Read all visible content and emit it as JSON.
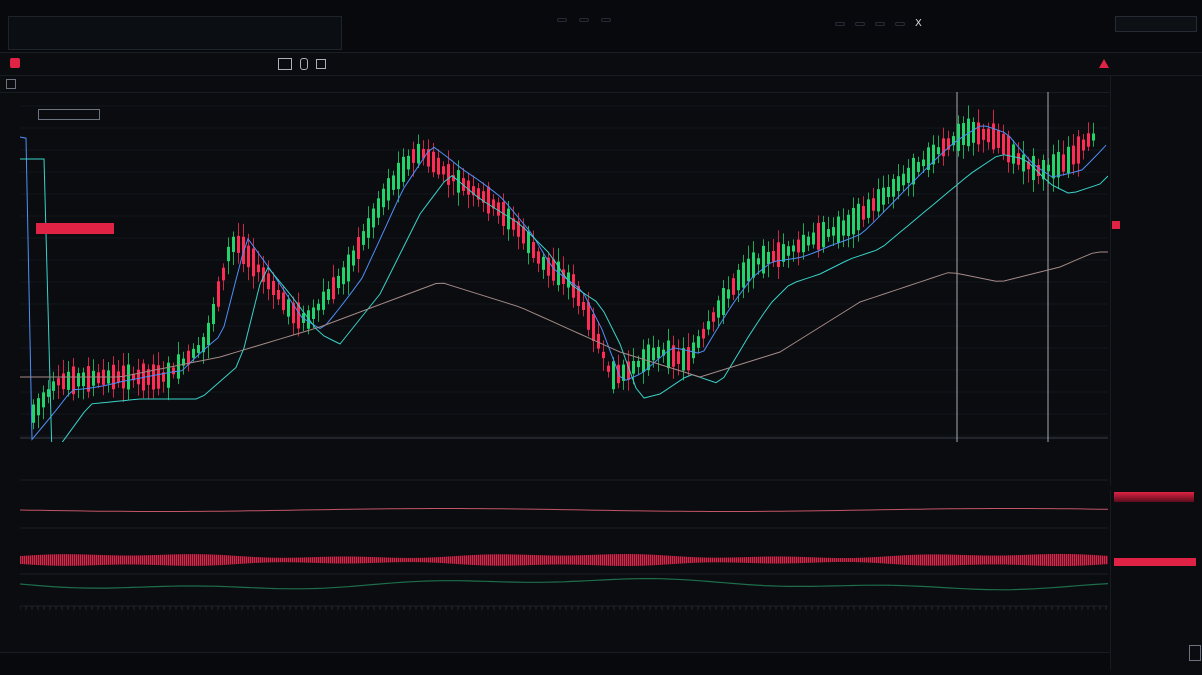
{
  "topbar": {
    "watch_items": [
      {
        "label": "",
        "change": "",
        "color": "red"
      },
      {
        "label": "",
        "change": "",
        "color": "red"
      },
      {
        "label": "",
        "change": "",
        "color": "red"
      },
      {
        "label": "",
        "change": "",
        "color": "green"
      },
      {
        "label": "",
        "change": "",
        "color": "green"
      },
      {
        "label": "",
        "change": "",
        "color": "green"
      }
    ],
    "right_tools": [
      "",
      "",
      "",
      "",
      "",
      "",
      "",
      ""
    ],
    "close_glyph": "X"
  },
  "toolbar2": {
    "symbol_title": "",
    "timeframes": [
      "",
      "",
      "",
      "",
      "",
      "",
      "",
      "",
      "",
      ""
    ]
  },
  "toolbar3": {
    "chart_title": "",
    "legend_items": [
      "",
      ""
    ],
    "right_readouts": [
      "",
      "",
      "",
      "",
      "",
      "",
      ""
    ]
  },
  "chart": {
    "price_label": "",
    "ma_legend": "",
    "crosshair_labels": [
      "",
      ""
    ]
  },
  "indicator": {
    "title": "",
    "sub_title": ""
  },
  "right_panel": {
    "rows": [
      {
        "k": "",
        "v": "",
        "c": "white"
      },
      {
        "k": "",
        "v": "",
        "c": "white"
      },
      {
        "k": "",
        "v": "",
        "c": "white"
      },
      {
        "k": "",
        "v": "",
        "c": "white"
      },
      {
        "k": "",
        "v": "",
        "c": "red"
      },
      {
        "k": "",
        "v": "",
        "c": "red"
      },
      {
        "k": "",
        "v": "",
        "c": "white"
      },
      {
        "k": "",
        "v": "",
        "c": "white"
      },
      {
        "k": "",
        "v": "",
        "c": "white"
      },
      {
        "k": "",
        "v": "",
        "c": "white"
      },
      {
        "k": "",
        "v": "",
        "c": "red"
      },
      {
        "k": "",
        "v": "",
        "c": "white"
      },
      {
        "k": "",
        "v": "",
        "c": "red"
      },
      {
        "k": "",
        "v": "",
        "c": "white"
      },
      {
        "k": "",
        "v": "",
        "c": "white"
      },
      {
        "k": "",
        "v": "",
        "c": "white"
      },
      {
        "k": "",
        "v": "",
        "c": "white"
      }
    ]
  },
  "bottom": {
    "items": [
      "",
      "",
      "",
      ""
    ]
  },
  "colors": {
    "up": "#22d46b",
    "down": "#ff2d55",
    "ma_fast": "#4f8ff7",
    "ma_slow": "#39d3c8",
    "ma_long": "#a48a86",
    "bg": "#0a0c10",
    "grid": "#1b2028",
    "accent": "#e02244"
  }
}
